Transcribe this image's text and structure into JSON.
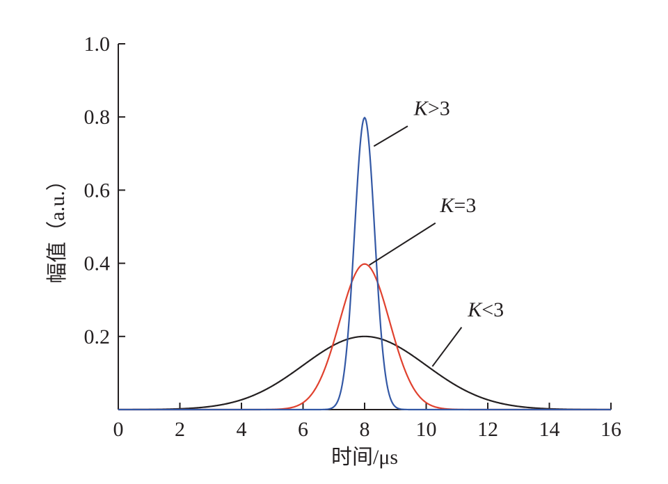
{
  "chart_data": {
    "type": "line",
    "title": "",
    "xlabel": "时间/μs",
    "ylabel": "幅值（a.u.）",
    "xlim": [
      0,
      16
    ],
    "ylim": [
      0,
      1.0
    ],
    "x_ticks": [
      0,
      2,
      4,
      6,
      8,
      10,
      12,
      14,
      16
    ],
    "x_tick_labels": [
      "0",
      "2",
      "4",
      "6",
      "8",
      "10",
      "12",
      "14",
      "16"
    ],
    "y_ticks": [
      0.2,
      0.4,
      0.6,
      0.8,
      1.0
    ],
    "y_tick_labels": [
      "0.2",
      "0.4",
      "0.6",
      "0.8",
      "1.0"
    ],
    "grid": false,
    "series": [
      {
        "color": "#231f20",
        "points": [
          [
            0,
            0
          ],
          [
            1,
            0.0
          ],
          [
            2,
            0.001
          ],
          [
            3,
            0.006
          ],
          [
            4,
            0.027
          ],
          [
            5,
            0.068
          ],
          [
            6,
            0.121
          ],
          [
            7,
            0.176
          ],
          [
            8,
            0.2
          ],
          [
            9,
            0.176
          ],
          [
            10,
            0.121
          ],
          [
            11,
            0.068
          ],
          [
            12,
            0.027
          ],
          [
            13,
            0.006
          ],
          [
            14,
            0.001
          ],
          [
            15,
            0.0
          ],
          [
            16,
            0
          ]
        ]
      },
      {
        "color": "#e0412e",
        "points": [
          [
            0,
            0
          ],
          [
            4,
            0
          ],
          [
            4.5,
            0.001
          ],
          [
            5,
            0.005
          ],
          [
            5.5,
            0.016
          ],
          [
            6,
            0.042
          ],
          [
            6.5,
            0.099
          ],
          [
            7,
            0.186
          ],
          [
            7.5,
            0.323
          ],
          [
            8,
            0.398
          ],
          [
            8.5,
            0.323
          ],
          [
            9,
            0.186
          ],
          [
            9.5,
            0.099
          ],
          [
            10,
            0.042
          ],
          [
            10.5,
            0.016
          ],
          [
            11,
            0.005
          ],
          [
            11.5,
            0.001
          ],
          [
            12,
            0
          ],
          [
            16,
            0
          ]
        ]
      },
      {
        "color": "#3358a5",
        "points": [
          [
            0,
            0
          ],
          [
            6,
            0
          ],
          [
            6.5,
            0.001
          ],
          [
            7,
            0.023
          ],
          [
            7.25,
            0.08
          ],
          [
            7.5,
            0.25
          ],
          [
            7.75,
            0.58
          ],
          [
            8,
            0.798
          ],
          [
            8.25,
            0.58
          ],
          [
            8.5,
            0.25
          ],
          [
            8.75,
            0.08
          ],
          [
            9,
            0.023
          ],
          [
            9.5,
            0.001
          ],
          [
            10,
            0
          ],
          [
            16,
            0
          ]
        ]
      }
    ],
    "annotations": [
      {
        "text_italic": "K",
        "text_rest": ">3",
        "text_at": [
          9.6,
          0.805
        ],
        "line_from": [
          9.4,
          0.775
        ],
        "line_to": [
          8.3,
          0.72
        ]
      },
      {
        "text_italic": "K",
        "text_rest": "=3",
        "text_at": [
          10.45,
          0.54
        ],
        "line_from": [
          10.3,
          0.51
        ],
        "line_to": [
          8.15,
          0.395
        ]
      },
      {
        "text_italic": "K",
        "text_rest": "<3",
        "text_at": [
          11.35,
          0.255
        ],
        "line_from": [
          11.15,
          0.225
        ],
        "line_to": [
          10.2,
          0.118
        ]
      }
    ]
  }
}
